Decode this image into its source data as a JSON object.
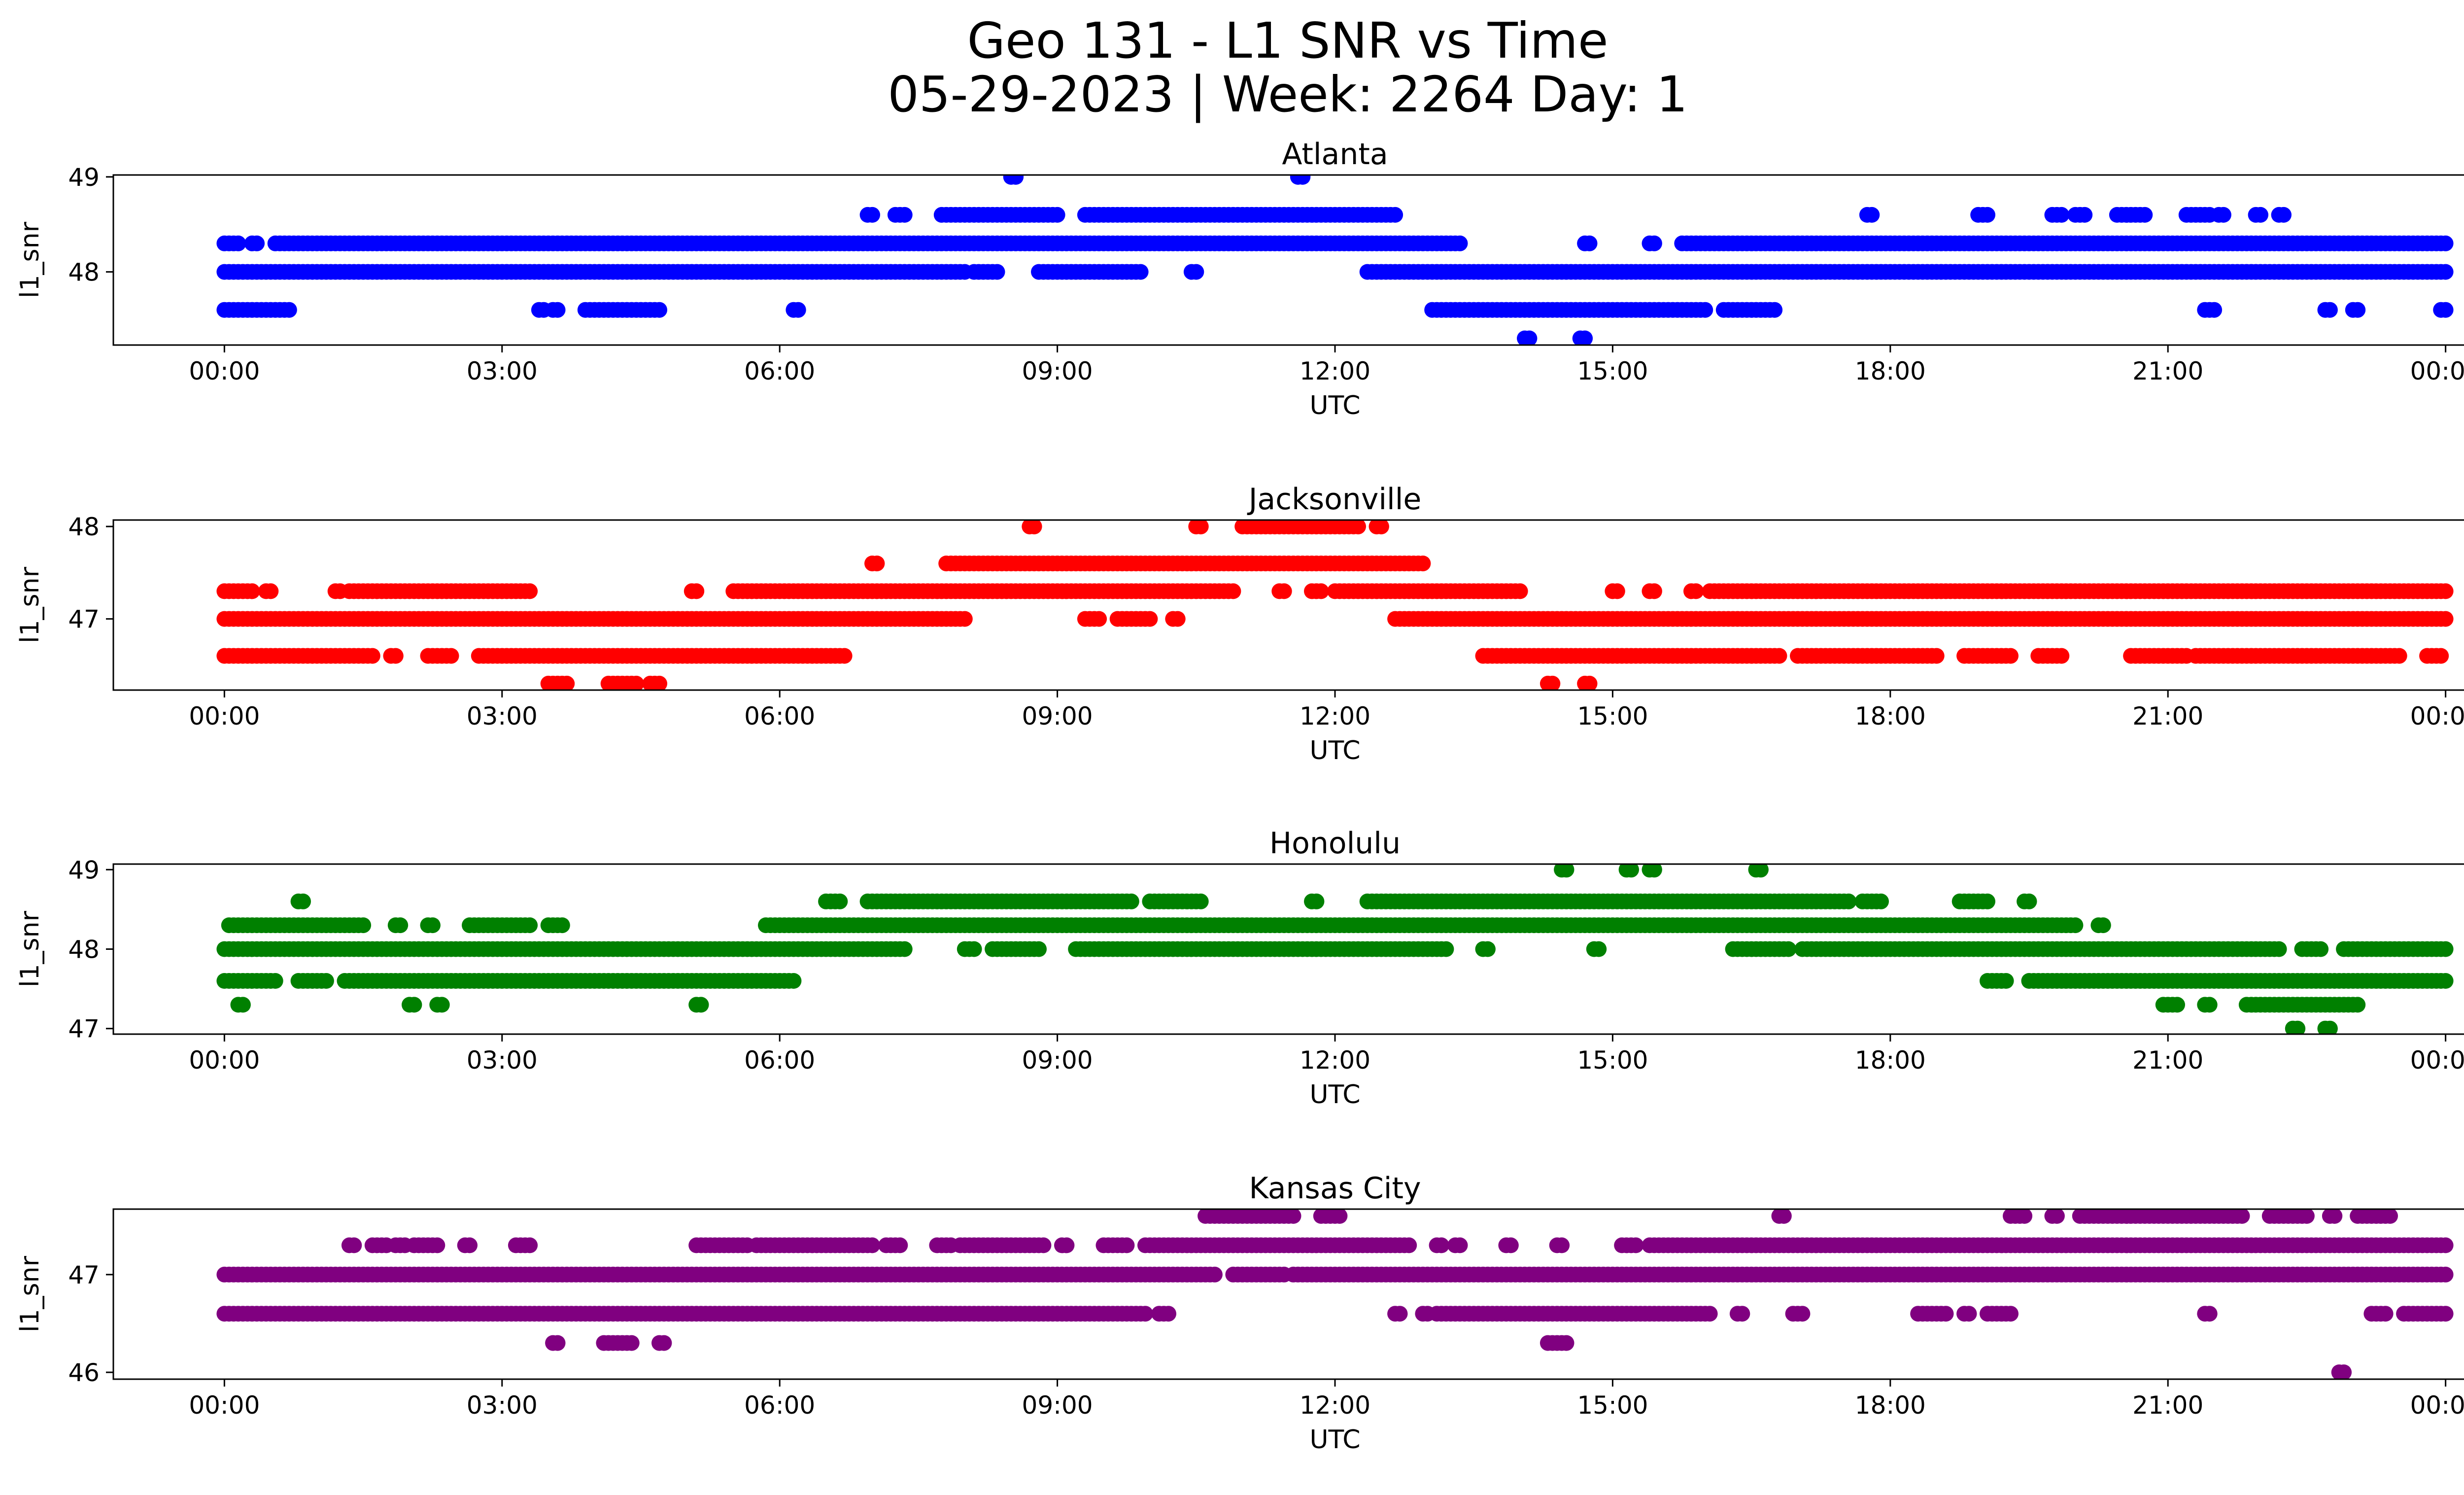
{
  "figure": {
    "title_line1": "Geo 131 - L1 SNR vs Time",
    "title_line2": "05-29-2023 | Week: 2264 Day: 1"
  },
  "chart_data": [
    {
      "type": "scatter",
      "title": "Atlanta",
      "xlabel": "UTC",
      "ylabel": "l1_snr",
      "color": "#0000ff",
      "x_unit": "hours UTC",
      "xlim": [
        -1.2,
        25.2
      ],
      "ylim": [
        47.23,
        49.02
      ],
      "x_ticks": [
        "00:00",
        "03:00",
        "06:00",
        "09:00",
        "12:00",
        "15:00",
        "18:00",
        "21:00",
        "00:00"
      ],
      "y_ticks": [
        48,
        49
      ],
      "bands": [
        {
          "y": 48.0,
          "x_ranges": [
            [
              0,
              8.0
            ],
            [
              8.1,
              8.35
            ],
            [
              8.8,
              9.9
            ],
            [
              10.45,
              10.5
            ],
            [
              12.35,
              24.0
            ]
          ]
        },
        {
          "y": 48.3,
          "x_ranges": [
            [
              0,
              0.15
            ],
            [
              0.3,
              0.35
            ],
            [
              0.55,
              13.35
            ],
            [
              14.7,
              14.75
            ],
            [
              15.4,
              15.45
            ],
            [
              15.75,
              24.0
            ]
          ]
        },
        {
          "y": 47.6,
          "x_ranges": [
            [
              0,
              0.7
            ],
            [
              3.4,
              3.45
            ],
            [
              3.55,
              3.6
            ],
            [
              3.9,
              4.7
            ],
            [
              6.15,
              6.2
            ],
            [
              13.05,
              16.0
            ],
            [
              16.2,
              16.75
            ],
            [
              21.4,
              21.5
            ],
            [
              22.7,
              22.75
            ],
            [
              23.0,
              23.05
            ],
            [
              23.95,
              24.0
            ]
          ]
        },
        {
          "y": 48.6,
          "x_ranges": [
            [
              6.95,
              7.0
            ],
            [
              7.25,
              7.35
            ],
            [
              7.75,
              9.0
            ],
            [
              9.3,
              12.65
            ],
            [
              17.75,
              17.8
            ],
            [
              18.95,
              19.05
            ],
            [
              19.75,
              19.85
            ],
            [
              20.0,
              20.1
            ],
            [
              20.45,
              20.75
            ],
            [
              21.2,
              21.45
            ],
            [
              21.55,
              21.6
            ],
            [
              21.95,
              22.0
            ],
            [
              22.2,
              22.25
            ]
          ]
        },
        {
          "y": 49.0,
          "x_ranges": [
            [
              8.5,
              8.55
            ],
            [
              11.6,
              11.65
            ]
          ]
        },
        {
          "y": 47.3,
          "x_ranges": [
            [
              14.05,
              14.1
            ],
            [
              14.65,
              14.7
            ]
          ]
        }
      ]
    },
    {
      "type": "scatter",
      "title": "Jacksonville",
      "xlabel": "UTC",
      "ylabel": "l1_snr",
      "color": "#ff0000",
      "x_unit": "hours UTC",
      "xlim": [
        -1.2,
        25.2
      ],
      "ylim": [
        46.23,
        48.07
      ],
      "x_ticks": [
        "00:00",
        "03:00",
        "06:00",
        "09:00",
        "12:00",
        "15:00",
        "18:00",
        "21:00",
        "00:00"
      ],
      "y_ticks": [
        47,
        48
      ],
      "bands": [
        {
          "y": 47.0,
          "x_ranges": [
            [
              0,
              8.0
            ],
            [
              9.3,
              9.45
            ],
            [
              9.65,
              10.0
            ],
            [
              10.25,
              10.3
            ],
            [
              12.65,
              24.0
            ]
          ]
        },
        {
          "y": 47.3,
          "x_ranges": [
            [
              0,
              0.3
            ],
            [
              0.45,
              0.5
            ],
            [
              1.2,
              1.25
            ],
            [
              1.35,
              3.3
            ],
            [
              5.05,
              5.1
            ],
            [
              5.5,
              10.9
            ],
            [
              11.4,
              11.45
            ],
            [
              11.75,
              11.85
            ],
            [
              12.0,
              14.0
            ],
            [
              15.0,
              15.05
            ],
            [
              15.4,
              15.45
            ],
            [
              15.85,
              15.9
            ],
            [
              16.05,
              24.0
            ]
          ]
        },
        {
          "y": 46.6,
          "x_ranges": [
            [
              0,
              1.6
            ],
            [
              1.8,
              1.85
            ],
            [
              2.2,
              2.45
            ],
            [
              2.75,
              6.7
            ],
            [
              13.6,
              16.8
            ],
            [
              17.0,
              18.5
            ],
            [
              18.8,
              19.3
            ],
            [
              19.6,
              19.85
            ],
            [
              20.6,
              21.2
            ],
            [
              21.3,
              23.3
            ],
            [
              23.35,
              23.5
            ],
            [
              23.8,
              23.95
            ]
          ]
        },
        {
          "y": 46.3,
          "x_ranges": [
            [
              3.5,
              3.7
            ],
            [
              4.15,
              4.45
            ],
            [
              4.6,
              4.7
            ],
            [
              14.3,
              14.35
            ],
            [
              14.7,
              14.75
            ]
          ]
        },
        {
          "y": 47.6,
          "x_ranges": [
            [
              7.0,
              7.05
            ],
            [
              7.8,
              12.95
            ]
          ]
        },
        {
          "y": 48.0,
          "x_ranges": [
            [
              8.7,
              8.75
            ],
            [
              10.5,
              10.55
            ],
            [
              11.0,
              12.25
            ],
            [
              12.45,
              12.5
            ]
          ]
        }
      ]
    },
    {
      "type": "scatter",
      "title": "Honolulu",
      "xlabel": "UTC",
      "ylabel": "l1_snr",
      "color": "#008000",
      "x_unit": "hours UTC",
      "xlim": [
        -1.2,
        25.2
      ],
      "ylim": [
        46.93,
        49.07
      ],
      "x_ticks": [
        "00:00",
        "03:00",
        "06:00",
        "09:00",
        "12:00",
        "15:00",
        "18:00",
        "21:00",
        "00:00"
      ],
      "y_ticks": [
        47,
        48,
        49
      ],
      "bands": [
        {
          "y": 48.0,
          "x_ranges": [
            [
              0,
              7.35
            ],
            [
              8.0,
              8.1
            ],
            [
              8.3,
              8.8
            ],
            [
              9.2,
              13.2
            ],
            [
              13.6,
              13.65
            ],
            [
              14.8,
              14.85
            ],
            [
              16.3,
              16.9
            ],
            [
              17.05,
              22.2
            ],
            [
              22.45,
              22.65
            ],
            [
              22.9,
              24.0
            ]
          ]
        },
        {
          "y": 48.3,
          "x_ranges": [
            [
              0.05,
              1.5
            ],
            [
              1.85,
              1.9
            ],
            [
              2.2,
              2.25
            ],
            [
              2.65,
              3.3
            ],
            [
              3.5,
              3.65
            ],
            [
              5.85,
              20.0
            ],
            [
              20.25,
              20.3
            ]
          ]
        },
        {
          "y": 47.6,
          "x_ranges": [
            [
              0,
              0.55
            ],
            [
              0.8,
              1.1
            ],
            [
              1.3,
              6.15
            ],
            [
              19.05,
              19.25
            ],
            [
              19.5,
              24.0
            ]
          ]
        },
        {
          "y": 47.3,
          "x_ranges": [
            [
              0.15,
              0.2
            ],
            [
              2.0,
              2.05
            ],
            [
              2.3,
              2.35
            ],
            [
              5.1,
              5.15
            ],
            [
              20.95,
              21.1
            ],
            [
              21.4,
              21.45
            ],
            [
              21.85,
              23.05
            ]
          ]
        },
        {
          "y": 48.6,
          "x_ranges": [
            [
              0.8,
              0.85
            ],
            [
              6.5,
              6.65
            ],
            [
              6.95,
              9.8
            ],
            [
              10.0,
              10.55
            ],
            [
              11.75,
              11.8
            ],
            [
              12.35,
              17.55
            ],
            [
              17.7,
              17.9
            ],
            [
              18.75,
              19.05
            ],
            [
              19.45,
              19.5
            ]
          ]
        },
        {
          "y": 49.0,
          "x_ranges": [
            [
              14.45,
              14.5
            ],
            [
              15.15,
              15.2
            ],
            [
              15.4,
              15.45
            ],
            [
              16.55,
              16.6
            ]
          ]
        },
        {
          "y": 47.0,
          "x_ranges": [
            [
              22.35,
              22.4
            ],
            [
              22.7,
              22.75
            ]
          ]
        }
      ]
    },
    {
      "type": "scatter",
      "title": "Kansas City",
      "xlabel": "UTC",
      "ylabel": "l1_snr",
      "color": "#800080",
      "x_unit": "hours UTC",
      "xlim": [
        -1.2,
        25.2
      ],
      "ylim": [
        45.93,
        47.67
      ],
      "x_ticks": [
        "00:00",
        "03:00",
        "06:00",
        "09:00",
        "12:00",
        "15:00",
        "18:00",
        "21:00",
        "00:00"
      ],
      "y_ticks": [
        46,
        47
      ],
      "bands": [
        {
          "y": 47.0,
          "x_ranges": [
            [
              0,
              10.7
            ],
            [
              10.9,
              11.45
            ],
            [
              11.55,
              24.0
            ]
          ]
        },
        {
          "y": 46.6,
          "x_ranges": [
            [
              0,
              9.95
            ],
            [
              10.1,
              10.2
            ],
            [
              12.65,
              12.7
            ],
            [
              12.95,
              13.0
            ],
            [
              13.1,
              16.05
            ],
            [
              16.35,
              16.4
            ],
            [
              16.95,
              17.05
            ],
            [
              18.3,
              18.6
            ],
            [
              18.8,
              18.85
            ],
            [
              19.05,
              19.3
            ],
            [
              21.4,
              21.45
            ],
            [
              23.2,
              23.35
            ],
            [
              23.55,
              24.0
            ]
          ]
        },
        {
          "y": 47.3,
          "x_ranges": [
            [
              1.35,
              1.4
            ],
            [
              1.6,
              1.75
            ],
            [
              1.85,
              1.95
            ],
            [
              2.05,
              2.3
            ],
            [
              2.6,
              2.65
            ],
            [
              3.15,
              3.3
            ],
            [
              5.1,
              5.65
            ],
            [
              5.75,
              7.0
            ],
            [
              7.15,
              7.3
            ],
            [
              7.7,
              7.85
            ],
            [
              7.95,
              8.85
            ],
            [
              9.05,
              9.1
            ],
            [
              9.5,
              9.75
            ],
            [
              9.95,
              12.8
            ],
            [
              13.1,
              13.15
            ],
            [
              13.3,
              13.35
            ],
            [
              13.85,
              13.9
            ],
            [
              14.4,
              14.45
            ],
            [
              15.1,
              15.25
            ],
            [
              15.4,
              24.0
            ]
          ]
        },
        {
          "y": 46.3,
          "x_ranges": [
            [
              3.55,
              3.6
            ],
            [
              4.1,
              4.4
            ],
            [
              4.7,
              4.75
            ],
            [
              14.3,
              14.5
            ]
          ]
        },
        {
          "y": 47.6,
          "x_ranges": [
            [
              10.6,
              11.55
            ],
            [
              11.85,
              12.05
            ],
            [
              16.8,
              16.85
            ],
            [
              19.3,
              19.45
            ],
            [
              19.75,
              19.8
            ],
            [
              20.05,
              20.85
            ],
            [
              20.9,
              21.8
            ],
            [
              22.1,
              22.5
            ],
            [
              22.75,
              22.8
            ],
            [
              23.05,
              23.4
            ]
          ]
        },
        {
          "y": 46.0,
          "x_ranges": [
            [
              22.85,
              22.9
            ]
          ]
        }
      ]
    }
  ]
}
